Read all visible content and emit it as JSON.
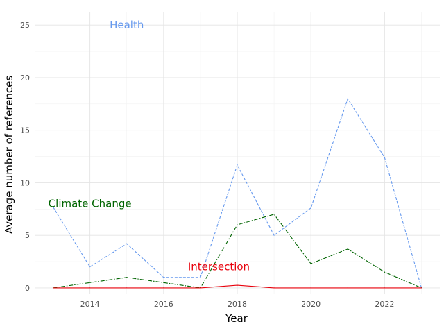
{
  "chart_data": {
    "type": "line",
    "title": "",
    "xlabel": "Year",
    "ylabel": "Average number of references",
    "x": [
      2013,
      2014,
      2015,
      2016,
      2017,
      2018,
      2019,
      2020,
      2021,
      2022,
      2023
    ],
    "xticks": [
      2014,
      2016,
      2018,
      2020,
      2022
    ],
    "yticks": [
      0,
      5,
      10,
      15,
      20,
      25
    ],
    "xlim": [
      2012.5,
      2023.5
    ],
    "ylim": [
      -0.6,
      26.2
    ],
    "grid": true,
    "legend": "direct labels",
    "series": [
      {
        "name": "Health",
        "label": "Health",
        "color": "#6699ee",
        "dash": "dashed",
        "label_at": [
          2015,
          25
        ],
        "values": [
          7.7,
          2.0,
          4.2,
          1.0,
          1.0,
          11.7,
          5.0,
          7.6,
          18.0,
          12.4,
          0.0
        ]
      },
      {
        "name": "Climate Change",
        "label": "Climate Change",
        "color": "#006400",
        "dash": "dashdot",
        "label_at": [
          2014,
          8
        ],
        "values": [
          0.0,
          0.5,
          1.0,
          0.5,
          0.0,
          6.0,
          7.0,
          2.3,
          3.7,
          1.5,
          0.0
        ]
      },
      {
        "name": "Intersection",
        "label": "Intersection",
        "color": "#e8000b",
        "dash": "solid",
        "label_at": [
          2017.5,
          2
        ],
        "values": [
          0.0,
          0.0,
          0.0,
          0.0,
          0.0,
          0.25,
          0.0,
          0.0,
          0.0,
          0.0,
          0.0
        ]
      }
    ]
  }
}
